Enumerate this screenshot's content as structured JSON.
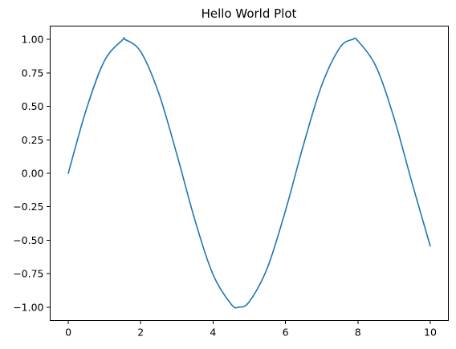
{
  "chart_data": {
    "type": "line",
    "title": "Hello World Plot",
    "xlabel": "",
    "ylabel": "",
    "xlim": [
      -0.5,
      10.5
    ],
    "ylim": [
      -1.1,
      1.1
    ],
    "xticks": [
      0,
      2,
      4,
      6,
      8,
      10
    ],
    "xtick_labels": [
      "0",
      "2",
      "4",
      "6",
      "8",
      "10"
    ],
    "yticks": [
      1.0,
      0.75,
      0.5,
      0.25,
      0.0,
      -0.25,
      -0.5,
      -0.75,
      -1.0
    ],
    "ytick_labels": [
      "1.00",
      "0.75",
      "0.50",
      "0.25",
      "0.00",
      "−0.25",
      "−0.50",
      "−0.75",
      "−1.00"
    ],
    "grid": false,
    "series": [
      {
        "color": "#1f77b4",
        "x": [
          0,
          0.5,
          1,
          1.5,
          1.5708,
          2,
          2.5,
          3,
          3.5,
          4,
          4.5,
          4.7124,
          5,
          5.5,
          6,
          6.5,
          7,
          7.5,
          7.854,
          8,
          8.5,
          9,
          9.5,
          10
        ],
        "y": [
          0.0,
          0.479,
          0.841,
          0.997,
          1.0,
          0.909,
          0.598,
          0.141,
          -0.351,
          -0.757,
          -0.978,
          -1.0,
          -0.959,
          -0.706,
          -0.279,
          0.215,
          0.657,
          0.938,
          1.0,
          0.989,
          0.798,
          0.412,
          -0.075,
          -0.544
        ]
      }
    ]
  }
}
